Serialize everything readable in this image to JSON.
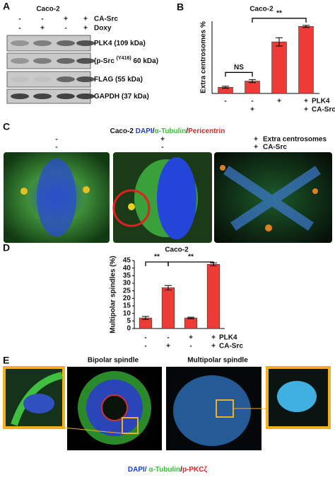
{
  "panel_a": {
    "letter": "A",
    "title": "Caco-2",
    "conditions": [
      {
        "name": "CA-Src",
        "signs": [
          "-",
          "-",
          "+",
          "+"
        ]
      },
      {
        "name": "Doxy",
        "signs": [
          "-",
          "+",
          "-",
          "+"
        ]
      }
    ],
    "blots": [
      {
        "label_parts": [
          "PLK4 (109 kDa)"
        ]
      },
      {
        "label_parts": [
          "(p-Src ",
          "(Y416)",
          " 60 kDa)"
        ]
      },
      {
        "label_parts": [
          "FLAG (55 kDa)"
        ]
      },
      {
        "label_parts": [
          "GAPDH  (37 kDa)"
        ]
      }
    ]
  },
  "chart_data": [
    {
      "panel_label": "B",
      "type": "bar",
      "title": "Caco-2",
      "y_label": "Extra centrosomes %",
      "color": "#ee3b36",
      "values": [
        6,
        12,
        50,
        65
      ],
      "errors": [
        1,
        1.5,
        4,
        1
      ],
      "ylim": [
        0,
        70
      ],
      "condition_rows": [
        {
          "name": "PLK4",
          "signs": [
            "-",
            "-",
            "+",
            "+"
          ]
        },
        {
          "name": "CA-Src",
          "signs": [
            null,
            "+",
            null,
            "+"
          ]
        }
      ],
      "annotations": [
        "NS",
        "**"
      ]
    },
    {
      "panel_label": "D",
      "type": "bar",
      "title": "Caco-2",
      "y_label": "Multipolar spindles (%)",
      "color": "#ee3b36",
      "values": [
        7,
        27,
        7,
        42.5
      ],
      "errors": [
        1,
        1.5,
        0.5,
        1
      ],
      "ylim": [
        0,
        45
      ],
      "yticks": [
        0,
        5,
        10,
        15,
        20,
        25,
        30,
        35,
        40,
        45
      ],
      "condition_rows": [
        {
          "name": "PLK4",
          "signs": [
            "-",
            "-",
            "+",
            "+"
          ]
        },
        {
          "name": "CA-Src",
          "signs": [
            "-",
            "+",
            "-",
            "+"
          ]
        }
      ],
      "annotations": [
        "**",
        "**"
      ]
    }
  ],
  "panel_c": {
    "letter": "C",
    "title": "Caco-2",
    "stain_parts": [
      "DAPI",
      "/",
      "α-Tubulin",
      "/",
      "Pericentrin"
    ],
    "rows": [
      {
        "name": "Extra centrosomes",
        "signs": [
          "-",
          "+",
          "+"
        ]
      },
      {
        "name": "CA-Src",
        "signs": [
          "-",
          "-",
          "+"
        ]
      }
    ]
  },
  "panel_e": {
    "letter": "E",
    "titles": [
      "Bipolar spindle",
      "Multipolar spindle"
    ],
    "stain_parts": [
      "DAPI/ ",
      "α-Tubulin",
      "/",
      "p-PKCζ"
    ]
  }
}
